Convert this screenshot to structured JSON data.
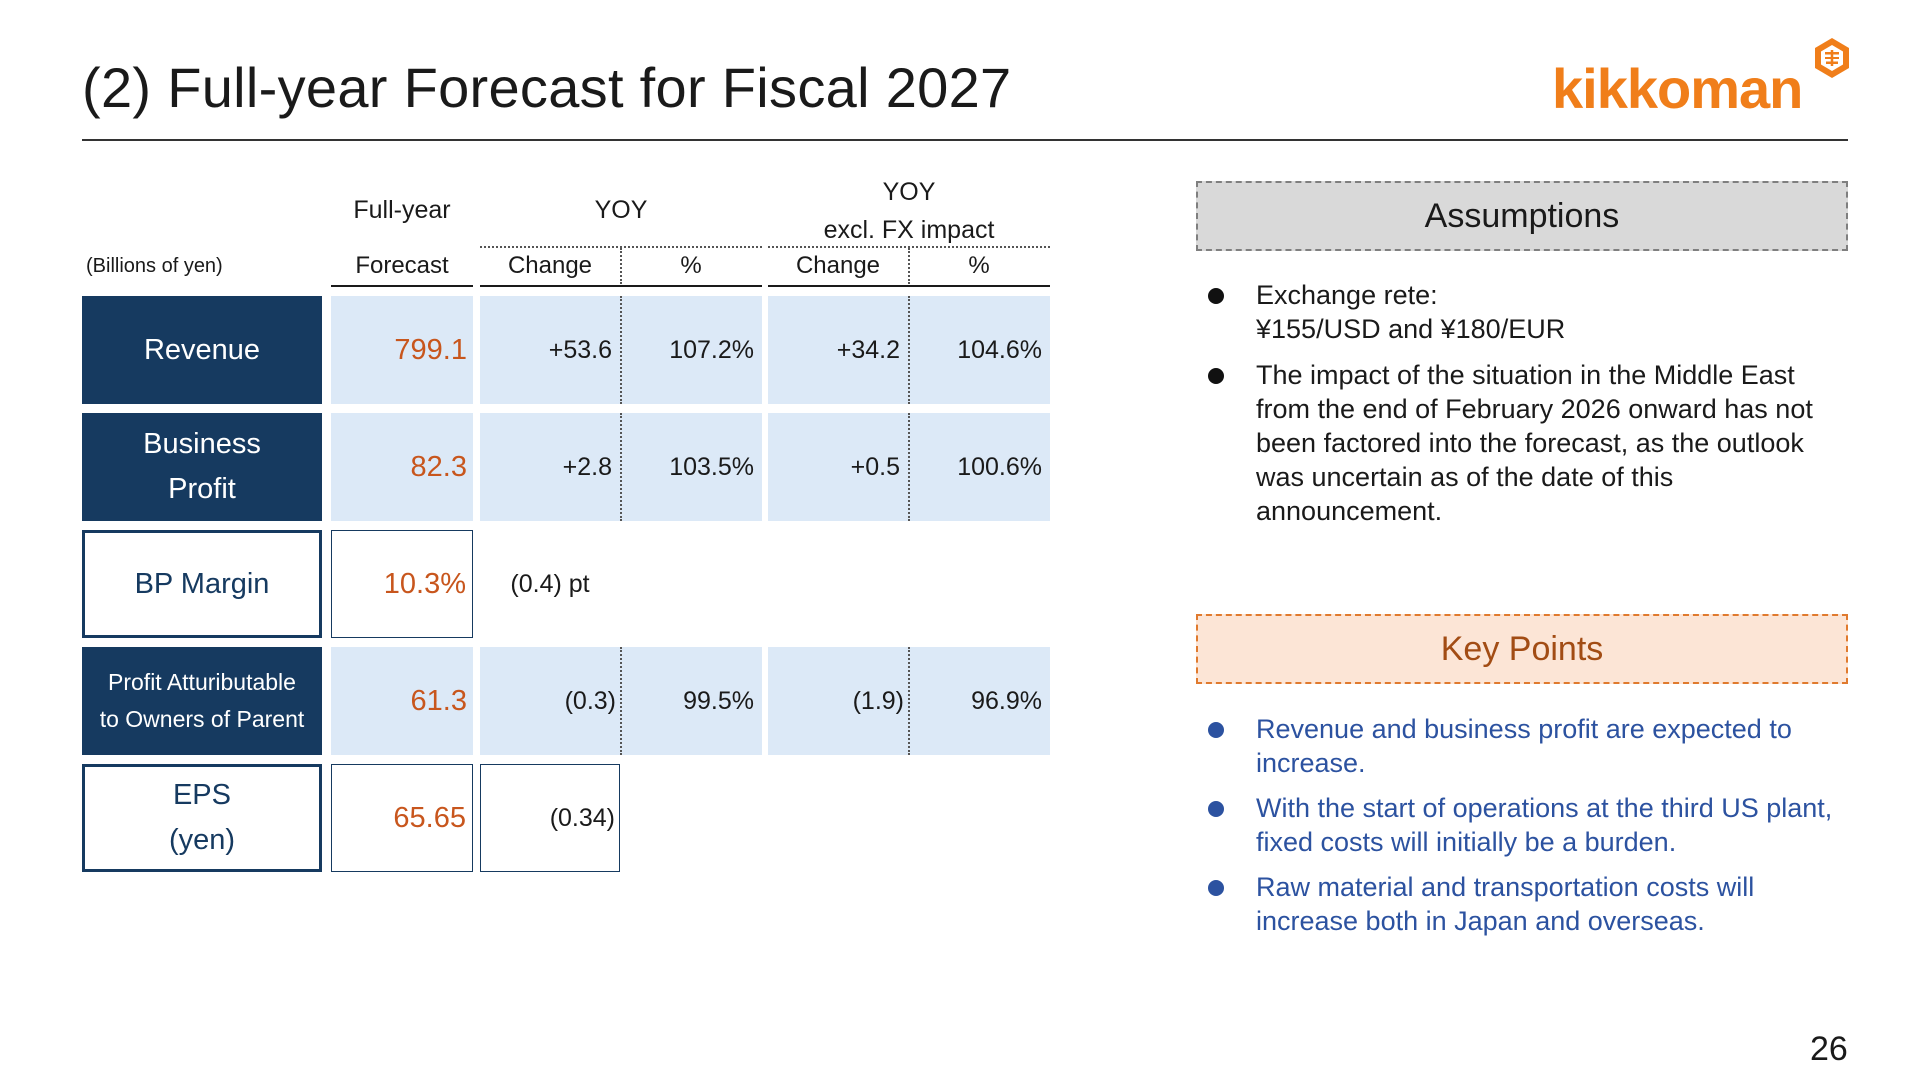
{
  "title": "(2) Full-year Forecast for Fiscal 2027",
  "logo": {
    "text": "kikkoman",
    "seal_icon": "kikkoman-seal-icon"
  },
  "page_number": "26",
  "table": {
    "units": "(Billions of yen)",
    "headers": {
      "full_year_top": "Full-year",
      "full_year_bottom": "Forecast",
      "yoy": "YOY",
      "yoy_excl_top": "YOY",
      "yoy_excl_bottom": "excl. FX impact",
      "change": "Change",
      "pct": "%",
      "change2": "Change",
      "pct2": "%"
    },
    "rows": [
      {
        "label": "Revenue",
        "forecast": "799.1",
        "yoy_change": "+53.6",
        "yoy_pct": "107.2%",
        "fx_change": "+34.2",
        "fx_pct": "104.6%"
      },
      {
        "label_line1": "Business",
        "label_line2": "Profit",
        "forecast": "82.3",
        "yoy_change": "+2.8",
        "yoy_pct": "103.5%",
        "fx_change": "+0.5",
        "fx_pct": "100.6%"
      },
      {
        "label": "BP Margin",
        "forecast": "10.3%",
        "yoy_change": "(0.4) pt"
      },
      {
        "label_line1": "Profit Attuributable",
        "label_line2": "to Owners of Parent",
        "forecast": "61.3",
        "yoy_change": "(0.3)",
        "yoy_pct": "99.5%",
        "fx_change": "(1.9)",
        "fx_pct": "96.9%"
      },
      {
        "label_line1": "EPS",
        "label_line2": "(yen)",
        "forecast": "65.65",
        "yoy_change": "(0.34)"
      }
    ]
  },
  "assumptions": {
    "heading": "Assumptions",
    "items": [
      {
        "line1": "Exchange rete:",
        "line2": "¥155/USD and ¥180/EUR"
      },
      {
        "text": "The impact of the situation in the Middle East from the end of February 2026 onward has not been factored into the forecast, as the outlook was uncertain as of the date of this announcement."
      }
    ]
  },
  "key_points": {
    "heading": "Key Points",
    "items": [
      "Revenue and business profit are expected to increase.",
      "With the start of operations at the third US plant, fixed costs will initially be a burden.",
      "Raw material and transportation costs will increase both in Japan and overseas."
    ]
  },
  "colors": {
    "navy": "#163a60",
    "light_blue_fill": "#dce9f7",
    "forecast_orange": "#c8561d",
    "logo_orange": "#f07e1a",
    "key_blue": "#2c52a0",
    "key_head_fill": "#fce5d6",
    "assump_head_fill": "#d9d9d9"
  }
}
